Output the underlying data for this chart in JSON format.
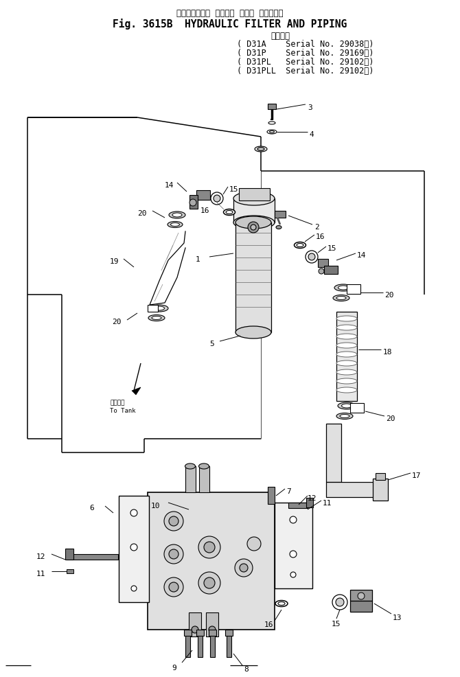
{
  "title_japanese": "ハイドロリック  フィルタ  および  パイピング",
  "title_english": "Fig. 3615B  HYDRAULIC FILTER AND PIPING",
  "serial_header": "適用号機",
  "serial_lines": [
    "( D31A    Serial No. 29038～)",
    "( D31P    Serial No. 29169～)",
    "( D31PL   Serial No. 29102～)",
    "( D31PLL  Serial No. 29102～)"
  ],
  "bg_color": "#ffffff",
  "line_color": "#000000",
  "fig_width": 6.7,
  "fig_height": 9.87,
  "dpi": 100
}
